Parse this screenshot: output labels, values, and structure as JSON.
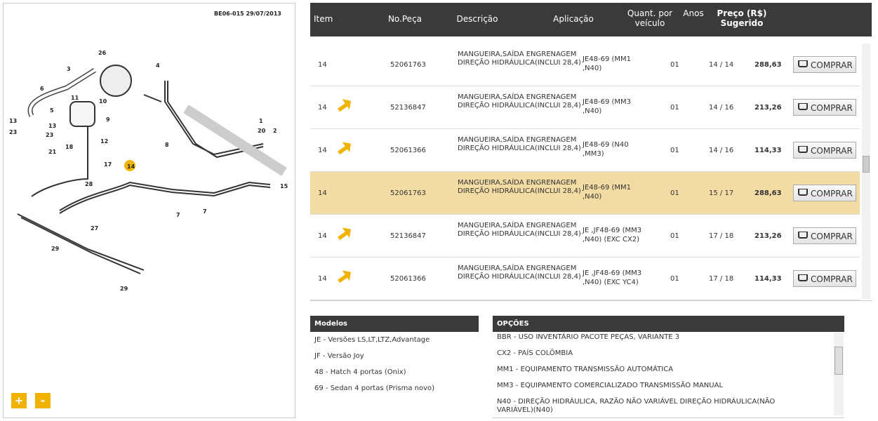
{
  "diagram": {
    "code": "BE06-015  29/07/2013",
    "callouts": [
      "26",
      "3",
      "4",
      "6",
      "10",
      "11",
      "5",
      "9",
      "13",
      "13",
      "23",
      "23",
      "21",
      "18",
      "12",
      "17",
      "14",
      "28",
      "8",
      "1",
      "20",
      "2",
      "15",
      "7",
      "7",
      "27",
      "29",
      "29"
    ],
    "zoom_in": "+",
    "zoom_out": "-"
  },
  "table": {
    "headers": [
      "Item",
      "No.Peça",
      "Descrição",
      "Aplicação",
      "Quant. por veículo",
      "Anos",
      "Preço (R$) Sugerido"
    ],
    "buy_label": "COMPRAR",
    "rows": [
      {
        "item": "14",
        "part": "52061763",
        "desc": "MANGUEIRA,SAÍDA ENGRENAGEM DIREÇÃO HIDRÁULICA(INCLUI 28,4)",
        "app": "JE48-69 (MM1 ,N40)",
        "qty": "01",
        "years": "14 / 14",
        "price": "288,63",
        "icon": false,
        "highlight": false
      },
      {
        "item": "14",
        "part": "52136847",
        "desc": "MANGUEIRA,SAÍDA ENGRENAGEM DIREÇÃO HIDRÁULICA(INCLUI 28,4)",
        "app": "JE48-69 (MM3 ,N40)",
        "qty": "01",
        "years": "14 / 16",
        "price": "213,26",
        "icon": true,
        "highlight": false
      },
      {
        "item": "14",
        "part": "52061366",
        "desc": "MANGUEIRA,SAÍDA ENGRENAGEM DIREÇÃO HIDRÁULICA(INCLUI 28,4)",
        "app": "JE48-69 (N40 ,MM3)",
        "qty": "01",
        "years": "14 / 16",
        "price": "114,33",
        "icon": true,
        "highlight": false
      },
      {
        "item": "14",
        "part": "52061763",
        "desc": "MANGUEIRA,SAÍDA ENGRENAGEM DIREÇÃO HIDRÁULICA(INCLUI 28,4)",
        "app": "JE48-69 (MM1 ,N40)",
        "qty": "01",
        "years": "15 / 17",
        "price": "288,63",
        "icon": false,
        "highlight": true
      },
      {
        "item": "14",
        "part": "52136847",
        "desc": "MANGUEIRA,SAÍDA ENGRENAGEM DIREÇÃO HIDRÁULICA(INCLUI 28,4)",
        "app": "JE ,JF48-69 (MM3 ,N40) (EXC CX2)",
        "qty": "01",
        "years": "17 / 18",
        "price": "213,26",
        "icon": true,
        "highlight": false
      },
      {
        "item": "14",
        "part": "52061366",
        "desc": "MANGUEIRA,SAÍDA ENGRENAGEM DIREÇÃO HIDRÁULICA(INCLUI 28,4)",
        "app": "JE ,JF48-69 (MM3 ,N40) (EXC YC4)",
        "qty": "01",
        "years": "17 / 18",
        "price": "114,33",
        "icon": true,
        "highlight": false
      }
    ]
  },
  "models": {
    "title": "Modelos",
    "items": [
      "JE - Versões LS,LT,LTZ,Advantage",
      "JF - Versão Joy",
      "48 - Hatch 4 portas (Onix)",
      "69 - Sedan 4 portas (Prisma novo)"
    ]
  },
  "options": {
    "title": "OPÇÕES",
    "items": [
      "BBR - USO INVENTÁRIO PACOTE PEÇAS, VARIANTE 3",
      "CX2 - PAÍS COLÔMBIA",
      "MM1 - EQUIPAMENTO TRANSMISSÃO AUTOMÁTICA",
      "MM3 - EQUIPAMENTO COMERCIALIZADO TRANSMISSÃO MANUAL",
      "N40 - DIREÇÃO HIDRÁULICA, RAZÃO NÃO VARIÁVEL DIREÇÃO HIDRÁULICA(NÃO VARIÁVEL)(N40)"
    ]
  }
}
